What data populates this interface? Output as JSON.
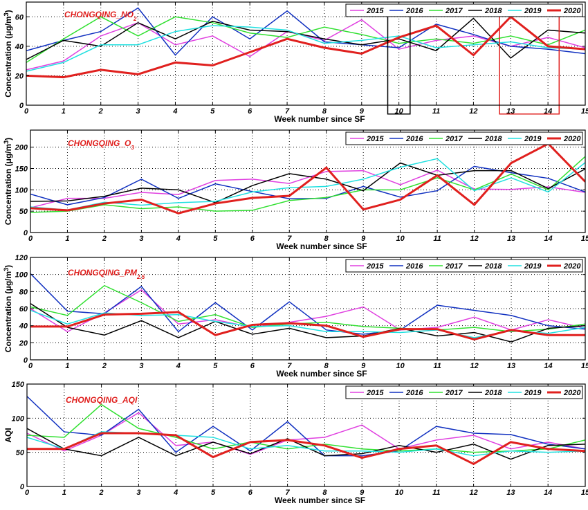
{
  "chart_data": [
    {
      "type": "line",
      "id": "no2",
      "title": "CHONGQING_NO",
      "title_sub": "2",
      "ylabel_main": "Concentration (",
      "ylabel_unit": "μg/m",
      "ylabel_sup": "3",
      "ylabel_end": ")",
      "xlabel": "Week number since SF",
      "xlim": [
        0,
        15
      ],
      "ylim": [
        0,
        70
      ],
      "yticks": [
        0,
        20,
        40,
        60
      ],
      "xticks": [
        0,
        1,
        2,
        3,
        4,
        5,
        6,
        7,
        8,
        9,
        10,
        11,
        12,
        13,
        14,
        15
      ],
      "grid": true,
      "legend_position": "top-right",
      "boxes": [
        {
          "x0": 9.7,
          "x1": 10.3,
          "y0": -6,
          "y1": 65,
          "color": "#000000"
        },
        {
          "x0": 12.7,
          "x1": 14.3,
          "y0": -6,
          "y1": 65,
          "color": "#e0201e"
        }
      ],
      "series": [
        {
          "name": "2015",
          "color": "#e040e0",
          "values": [
            24,
            30,
            47,
            56,
            41,
            47,
            33,
            50,
            44,
            58,
            38,
            44,
            47,
            40,
            46,
            39
          ]
        },
        {
          "name": "2016",
          "color": "#1030c0",
          "values": [
            37,
            44,
            50,
            66,
            34,
            60,
            45,
            64,
            43,
            41,
            39,
            55,
            48,
            40,
            38,
            35
          ]
        },
        {
          "name": "2017",
          "color": "#30e030",
          "values": [
            29,
            45,
            60,
            47,
            60,
            56,
            49,
            46,
            53,
            48,
            42,
            45,
            42,
            47,
            41,
            51
          ]
        },
        {
          "name": "2018",
          "color": "#000000",
          "values": [
            31,
            44,
            40,
            56,
            45,
            57,
            51,
            50,
            45,
            41,
            45,
            37,
            59,
            32,
            51,
            49
          ]
        },
        {
          "name": "2019",
          "color": "#20e0e0",
          "values": [
            23,
            29,
            41,
            41,
            50,
            54,
            53,
            51,
            42,
            44,
            47,
            39,
            41,
            43,
            39,
            38
          ]
        },
        {
          "name": "2020",
          "color": "#e0201e",
          "values": [
            20,
            19,
            24,
            21,
            29,
            27,
            36,
            45,
            39,
            35,
            46,
            54,
            34,
            60,
            40,
            38
          ],
          "bold": true
        }
      ]
    },
    {
      "type": "line",
      "id": "o3",
      "title": "CHONGQING_O",
      "title_sub": "3",
      "ylabel_main": "Concentration (",
      "ylabel_unit": "μg/m",
      "ylabel_sup": "3",
      "ylabel_end": ")",
      "xlabel": "Week number since SF",
      "xlim": [
        0,
        15
      ],
      "ylim": [
        0,
        240
      ],
      "yticks": [
        0,
        50,
        100,
        150,
        200
      ],
      "xticks": [
        0,
        1,
        2,
        3,
        4,
        5,
        6,
        7,
        8,
        9,
        10,
        11,
        12,
        13,
        14,
        15
      ],
      "grid": true,
      "legend_position": "top-right",
      "series": [
        {
          "name": "2015",
          "color": "#e040e0",
          "values": [
            58,
            80,
            80,
            94,
            89,
            122,
            125,
            115,
            143,
            145,
            112,
            146,
            102,
            101,
            107,
            94
          ]
        },
        {
          "name": "2016",
          "color": "#1030c0",
          "values": [
            90,
            65,
            82,
            125,
            80,
            114,
            96,
            79,
            80,
            108,
            83,
            98,
            155,
            140,
            127,
            95
          ]
        },
        {
          "name": "2017",
          "color": "#30e030",
          "values": [
            47,
            50,
            65,
            56,
            60,
            50,
            52,
            75,
            82,
            100,
            100,
            128,
            100,
            137,
            100,
            178
          ]
        },
        {
          "name": "2018",
          "color": "#000000",
          "values": [
            73,
            74,
            85,
            104,
            100,
            70,
            110,
            138,
            125,
            98,
            163,
            134,
            145,
            145,
            103,
            149
          ]
        },
        {
          "name": "2019",
          "color": "#20e0e0",
          "values": [
            60,
            53,
            71,
            64,
            70,
            73,
            95,
            105,
            108,
            125,
            153,
            173,
            98,
            128,
            95,
            164
          ]
        },
        {
          "name": "2020",
          "color": "#e0201e",
          "values": [
            57,
            52,
            68,
            77,
            45,
            68,
            81,
            86,
            152,
            54,
            77,
            134,
            65,
            163,
            208,
            119
          ],
          "bold": true
        }
      ]
    },
    {
      "type": "line",
      "id": "pm25",
      "title": "CHONGQING_PM",
      "title_sub": "2.5",
      "ylabel_main": "Concentration (",
      "ylabel_unit": "μg/m",
      "ylabel_sup": "3",
      "ylabel_end": ")",
      "xlabel": "Week number since SF",
      "xlim": [
        0,
        15
      ],
      "ylim": [
        0,
        120
      ],
      "yticks": [
        0,
        20,
        40,
        60,
        80,
        100,
        120
      ],
      "xticks": [
        0,
        1,
        2,
        3,
        4,
        5,
        6,
        7,
        8,
        9,
        10,
        11,
        12,
        13,
        14,
        15
      ],
      "grid": true,
      "legend_position": "top-right",
      "series": [
        {
          "name": "2015",
          "color": "#e040e0",
          "values": [
            60,
            33,
            55,
            82,
            42,
            47,
            38,
            44,
            51,
            62,
            35,
            38,
            50,
            35,
            47,
            37
          ]
        },
        {
          "name": "2016",
          "color": "#1030c0",
          "values": [
            101,
            57,
            54,
            86,
            33,
            67,
            35,
            68,
            35,
            30,
            35,
            64,
            58,
            52,
            40,
            36
          ]
        },
        {
          "name": "2017",
          "color": "#30e030",
          "values": [
            62,
            52,
            87,
            67,
            45,
            53,
            38,
            42,
            44,
            39,
            37,
            35,
            38,
            33,
            36,
            42
          ]
        },
        {
          "name": "2018",
          "color": "#000000",
          "values": [
            66,
            38,
            29,
            46,
            26,
            45,
            30,
            37,
            26,
            28,
            37,
            28,
            32,
            21,
            37,
            40
          ]
        },
        {
          "name": "2019",
          "color": "#20e0e0",
          "values": [
            58,
            42,
            55,
            52,
            53,
            45,
            39,
            40,
            33,
            33,
            32,
            35,
            26,
            34,
            31,
            38
          ]
        },
        {
          "name": "2020",
          "color": "#e0201e",
          "values": [
            39,
            39,
            53,
            54,
            56,
            29,
            41,
            43,
            40,
            27,
            36,
            36,
            24,
            35,
            29,
            29
          ],
          "bold": true
        }
      ]
    },
    {
      "type": "line",
      "id": "aqi",
      "title": "CHONGQING_AQI",
      "title_sub": "",
      "ylabel_main": "AQI",
      "ylabel_unit": "",
      "ylabel_sup": "",
      "ylabel_end": "",
      "xlabel": "Week number since SF",
      "xlim": [
        0,
        15
      ],
      "ylim": [
        0,
        150
      ],
      "yticks": [
        0,
        50,
        100,
        150
      ],
      "xticks": [
        0,
        1,
        2,
        3,
        4,
        5,
        6,
        7,
        8,
        9,
        10,
        11,
        12,
        13,
        14,
        15
      ],
      "grid": true,
      "legend_position": "top-right",
      "series": [
        {
          "name": "2015",
          "color": "#e040e0",
          "values": [
            78,
            52,
            75,
            108,
            60,
            65,
            47,
            68,
            72,
            90,
            55,
            68,
            75,
            55,
            65,
            55
          ]
        },
        {
          "name": "2016",
          "color": "#1030c0",
          "values": [
            132,
            80,
            75,
            113,
            50,
            88,
            52,
            95,
            45,
            45,
            52,
            88,
            78,
            76,
            62,
            55
          ]
        },
        {
          "name": "2017",
          "color": "#30e030",
          "values": [
            75,
            72,
            120,
            85,
            72,
            55,
            65,
            55,
            62,
            55,
            52,
            55,
            50,
            52,
            55,
            68
          ]
        },
        {
          "name": "2018",
          "color": "#000000",
          "values": [
            85,
            55,
            45,
            72,
            45,
            65,
            48,
            70,
            45,
            48,
            60,
            50,
            62,
            40,
            60,
            62
          ]
        },
        {
          "name": "2019",
          "color": "#20e0e0",
          "values": [
            72,
            55,
            80,
            78,
            75,
            72,
            55,
            60,
            52,
            52,
            50,
            55,
            45,
            52,
            50,
            52
          ]
        },
        {
          "name": "2020",
          "color": "#e0201e",
          "values": [
            55,
            55,
            78,
            78,
            75,
            43,
            65,
            68,
            60,
            42,
            55,
            60,
            33,
            65,
            55,
            52
          ],
          "bold": true
        }
      ]
    }
  ]
}
